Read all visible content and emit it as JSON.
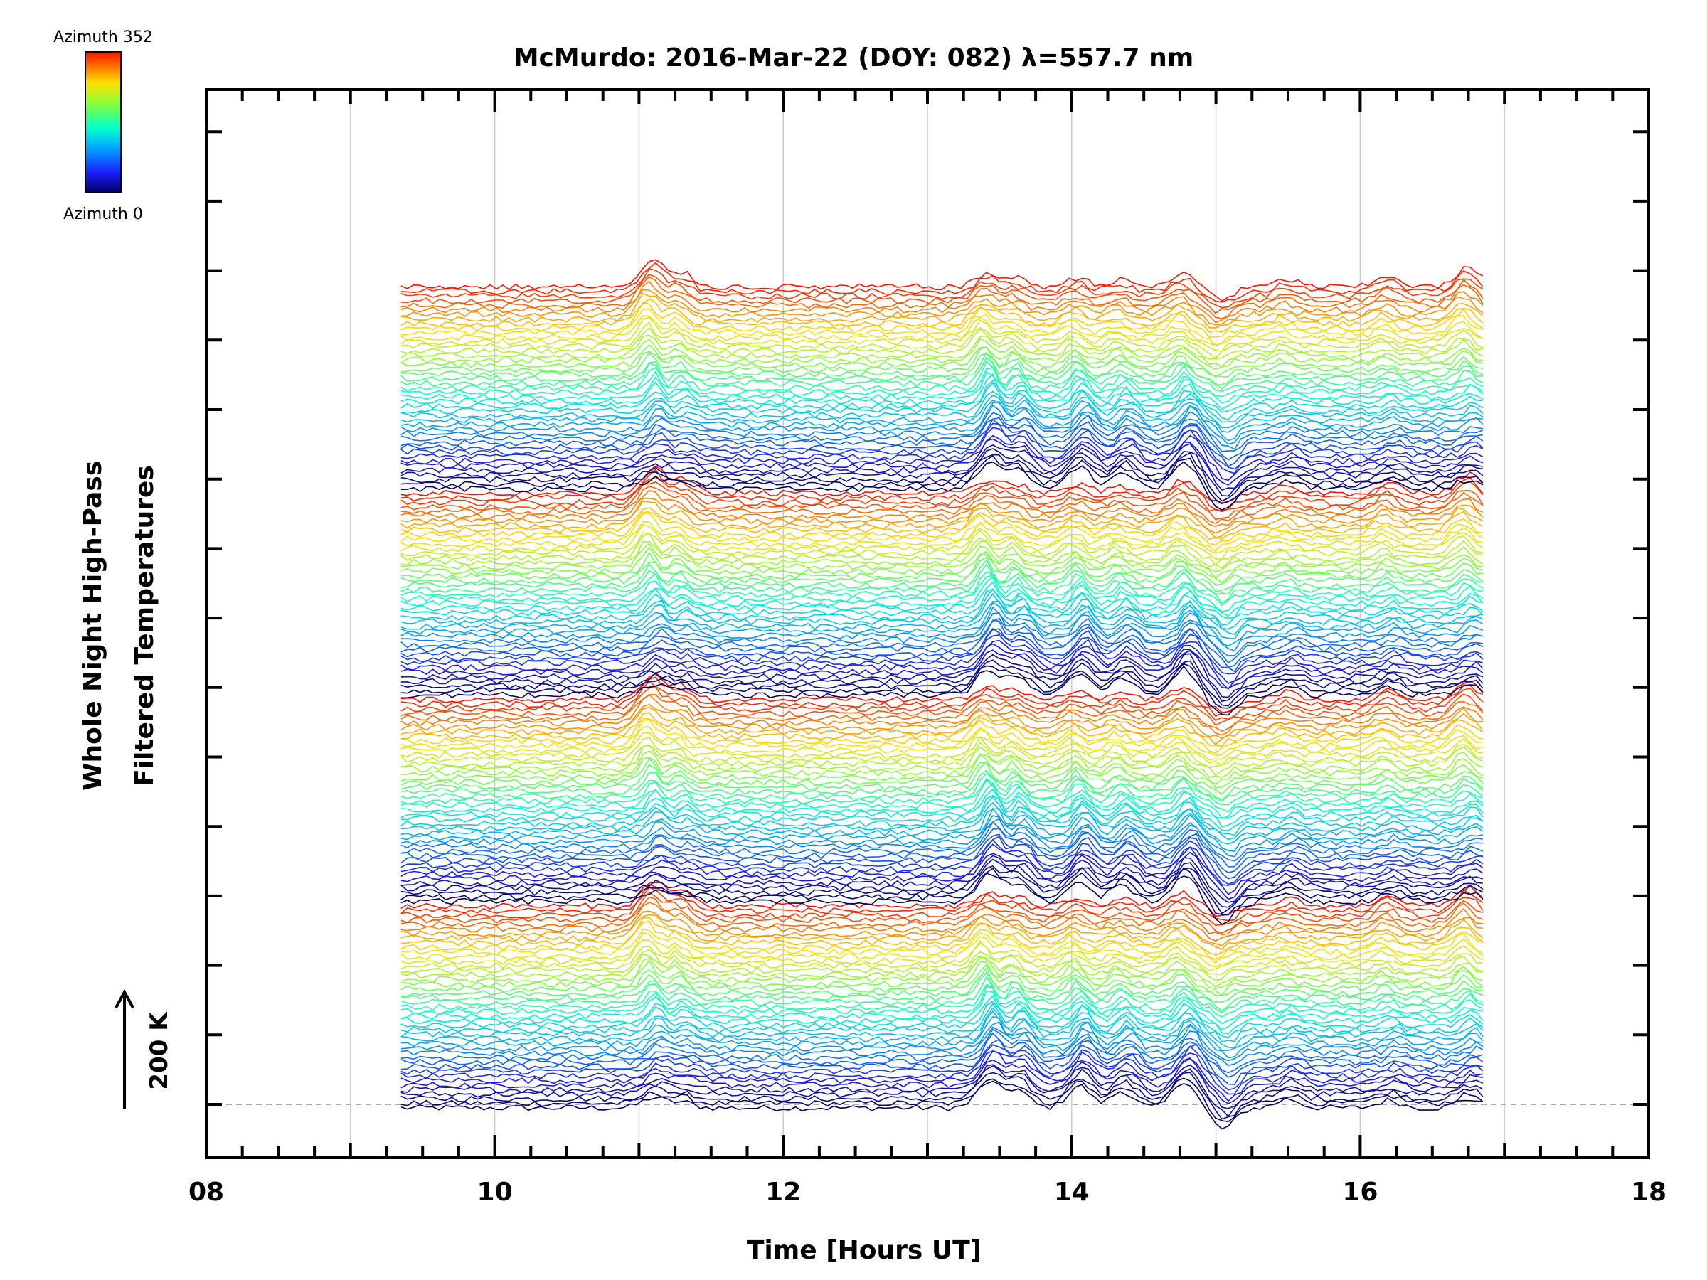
{
  "chart_data": {
    "type": "line",
    "title": "McMurdo: 2016-Mar-22 (DOY: 082) λ=557.7 nm",
    "xlabel": "Time [Hours UT]",
    "ylabel_line1": "Whole Night High-Pass",
    "ylabel_line2": "Filtered Temperatures",
    "xlim": [
      8,
      18
    ],
    "x_ticks": [
      "08",
      "10",
      "12",
      "14",
      "16",
      "18"
    ],
    "x_tick_values": [
      8,
      10,
      12,
      14,
      16,
      18
    ],
    "x_grid": [
      9,
      10,
      11,
      12,
      13,
      14,
      15,
      16,
      17
    ],
    "scale_bar_label": "200 K",
    "colorbar": {
      "top_label": "Azimuth 352",
      "bottom_label": "Azimuth 0",
      "colormap": "rainbow"
    },
    "data_time_range": [
      9.35,
      16.85
    ],
    "series_count": 180,
    "azimuth_step_deg": 8,
    "azimuths_per_cycle": 45,
    "cycles": 4,
    "features": [
      {
        "time": 11.1,
        "amplitude": 1.5
      },
      {
        "time": 11.3,
        "amplitude": 0.8
      },
      {
        "time": 13.42,
        "amplitude": 1.6
      },
      {
        "time": 13.62,
        "amplitude": 1.1
      },
      {
        "time": 14.05,
        "amplitude": 1.3
      },
      {
        "time": 14.35,
        "amplitude": 1.0
      },
      {
        "time": 14.78,
        "amplitude": 1.7
      },
      {
        "time": 15.05,
        "amplitude": -1.4
      },
      {
        "time": 15.5,
        "amplitude": 0.7
      },
      {
        "time": 16.2,
        "amplitude": 0.8
      },
      {
        "time": 16.75,
        "amplitude": 1.2
      }
    ],
    "colors": {
      "axis": "#000000",
      "grid": "#cccccc",
      "baseline": "#aaaaaa"
    }
  }
}
